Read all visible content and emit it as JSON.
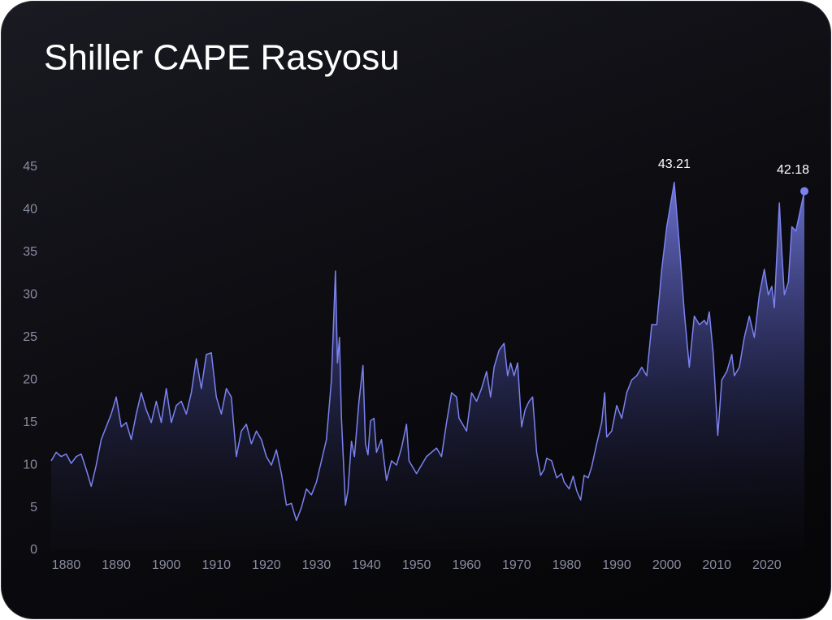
{
  "chart_data": {
    "type": "area",
    "title": "Shiller CAPE Rasyosu",
    "series": [
      {
        "name": "CAPE",
        "color": "#7b82f0",
        "x": [
          1877,
          1878,
          1879,
          1880,
          1881,
          1882,
          1883,
          1884,
          1885,
          1886,
          1887,
          1888,
          1889,
          1890,
          1891,
          1892,
          1893,
          1894,
          1895,
          1896,
          1897,
          1898,
          1899,
          1900,
          1901,
          1902,
          1903,
          1904,
          1905,
          1906,
          1907,
          1908,
          1909,
          1910,
          1911,
          1912,
          1913,
          1914,
          1915,
          1916,
          1917,
          1918,
          1919,
          1920,
          1921,
          1922,
          1923,
          1924,
          1925,
          1926,
          1927,
          1928,
          1929,
          1930,
          1931,
          1932,
          1933,
          1933.8,
          1934.2,
          1934.6,
          1935,
          1935.8,
          1936.3,
          1937,
          1937.6,
          1938.5,
          1939.3,
          1939.8,
          1940.3,
          1940.8,
          1941.5,
          1942,
          1943,
          1944,
          1945,
          1946,
          1947,
          1948,
          1948.5,
          1949,
          1950,
          1951,
          1952,
          1953,
          1954,
          1955,
          1956,
          1957,
          1958,
          1958.5,
          1959,
          1960,
          1961,
          1962,
          1963,
          1964,
          1964.8,
          1965.5,
          1966.5,
          1967.5,
          1968.2,
          1968.8,
          1969.5,
          1970.2,
          1971,
          1971.7,
          1972.5,
          1973.2,
          1974,
          1974.8,
          1975.5,
          1976,
          1977,
          1978,
          1979,
          1979.5,
          1980.5,
          1981.3,
          1982,
          1982.8,
          1983.5,
          1984.3,
          1985,
          1986,
          1987,
          1987.6,
          1988,
          1989,
          1990,
          1991,
          1992,
          1993,
          1994,
          1995,
          1996,
          1997,
          1998,
          1999,
          2000,
          2001.5,
          2002.5,
          2003.5,
          2004.5,
          2005.5,
          2006.5,
          2007.5,
          2008,
          2008.5,
          2009.3,
          2010.2,
          2011,
          2012,
          2013,
          2013.5,
          2014.5,
          2015.5,
          2016.5,
          2017.5,
          2018.5,
          2019.5,
          2020.3,
          2021,
          2021.5,
          2022.5,
          2023,
          2023.5,
          2024.3,
          2025,
          2025.8,
          2027.5
        ],
        "values": [
          10.5,
          11.5,
          11,
          11.3,
          10.2,
          11,
          11.3,
          9.5,
          7.5,
          10,
          13,
          14.5,
          16,
          18,
          14.5,
          15,
          13,
          16,
          18.5,
          16.5,
          15,
          17.5,
          15,
          19,
          15,
          17,
          17.5,
          16,
          18.5,
          22.5,
          19,
          23,
          23.2,
          18,
          16,
          19,
          18,
          11,
          14,
          14.8,
          12.5,
          14,
          13,
          11,
          10,
          11.8,
          9,
          5.3,
          5.5,
          3.5,
          5,
          7.2,
          6.5,
          8,
          10.5,
          13,
          20,
          32.8,
          22,
          25,
          15.5,
          5.3,
          7,
          12.8,
          11,
          17.5,
          21.7,
          12.5,
          11.2,
          15.2,
          15.5,
          11.5,
          13,
          8.2,
          10.5,
          10,
          12,
          14.8,
          10.5,
          10,
          9,
          10,
          11,
          11.5,
          12,
          11,
          15,
          18.5,
          18,
          15.5,
          15,
          14,
          18.5,
          17.5,
          19,
          21,
          18,
          21.5,
          23.5,
          24.3,
          20.5,
          22,
          20.5,
          22,
          14.5,
          16.5,
          17.5,
          18,
          11.5,
          8.8,
          9.5,
          10.8,
          10.5,
          8.5,
          9,
          8,
          7.2,
          8.7,
          7,
          5.9,
          8.8,
          8.5,
          9.8,
          12.5,
          15,
          18.5,
          13.3,
          14,
          17,
          15.5,
          18.5,
          20,
          20.5,
          21.5,
          20.5,
          26.5,
          26.5,
          33,
          38,
          43.21,
          36,
          28,
          21.5,
          27.5,
          26.5,
          27,
          26.5,
          28,
          23,
          13.5,
          20,
          21,
          23,
          20.5,
          21.5,
          25,
          27.5,
          25,
          30,
          33,
          30,
          31,
          28.5,
          40.8,
          35,
          30,
          31.5,
          38,
          37.5,
          42.18
        ]
      }
    ],
    "xlim": [
      1877,
      2027.5
    ],
    "xticks": [
      1880,
      1890,
      1900,
      1910,
      1920,
      1930,
      1940,
      1950,
      1960,
      1970,
      1980,
      1990,
      2000,
      2010,
      2020
    ],
    "ylim": [
      0,
      45
    ],
    "yticks": [
      0,
      5,
      10,
      15,
      20,
      25,
      30,
      35,
      40,
      45
    ],
    "grid": false
  }
}
